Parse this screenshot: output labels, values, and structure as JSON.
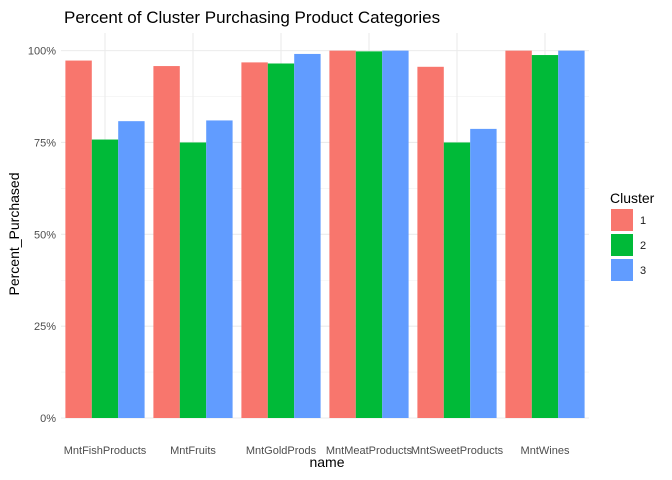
{
  "chart_data": {
    "type": "bar",
    "title": "Percent of Cluster Purchasing Product Categories",
    "xlabel": "name",
    "ylabel": "Percent_Purchased",
    "categories": [
      "MntFishProducts",
      "MntFruits",
      "MntGoldProds",
      "MntMeatProducts",
      "MntSweetProducts",
      "MntWines"
    ],
    "series": [
      {
        "name": "1",
        "color": "#F8766D",
        "values": [
          97.3,
          95.8,
          96.8,
          100.0,
          95.6,
          100.0
        ]
      },
      {
        "name": "2",
        "color": "#00BA38",
        "values": [
          75.8,
          75.0,
          96.5,
          99.8,
          75.0,
          98.8
        ]
      },
      {
        "name": "3",
        "color": "#619CFF",
        "values": [
          80.8,
          81.0,
          99.1,
          100.0,
          78.7,
          100.0
        ]
      }
    ],
    "ylim": [
      0,
      100
    ],
    "yticks": [
      0,
      25,
      50,
      75,
      100
    ],
    "ytick_labels": [
      "0%",
      "25%",
      "50%",
      "75%",
      "100%"
    ],
    "legend": {
      "title": "Cluster",
      "position": "right"
    },
    "grid": true
  }
}
